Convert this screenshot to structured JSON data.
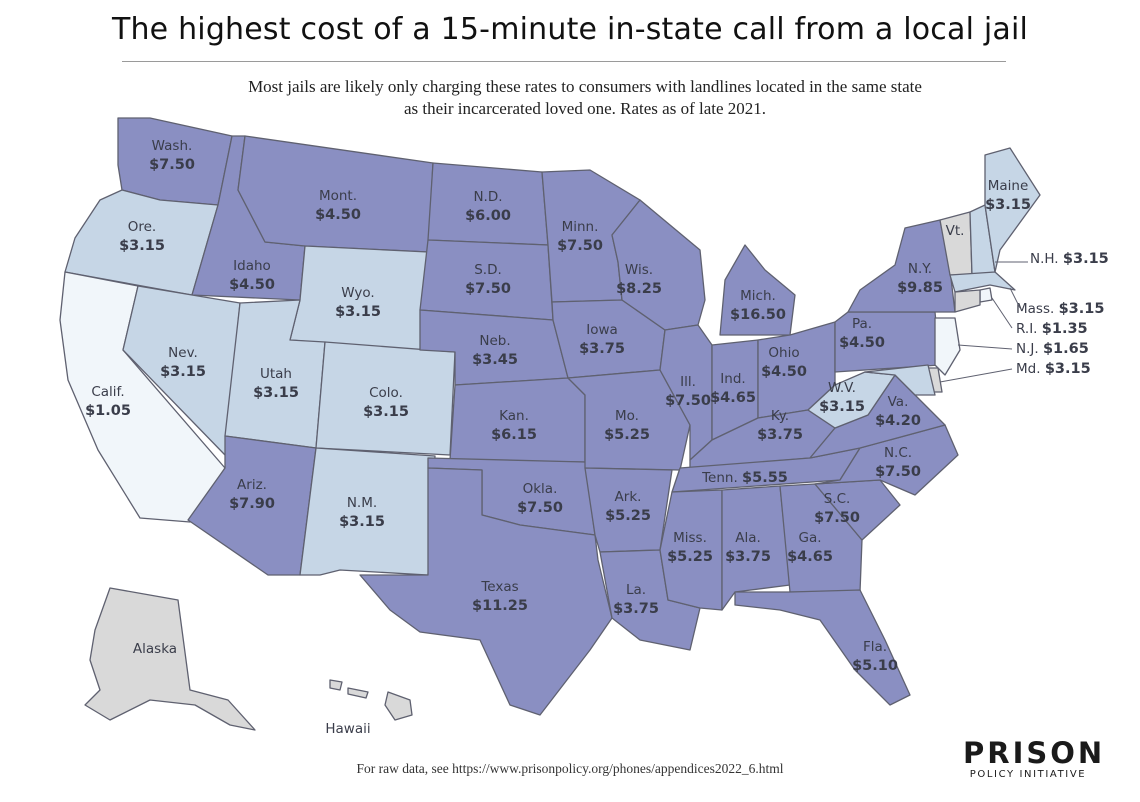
{
  "title": "The highest cost of a 15-minute in-state call from a local jail",
  "subtitle_line1": "Most jails are likely only charging these rates to consumers with landlines located in the same state",
  "subtitle_line2": "as their incarcerated loved one. Rates as of late 2021.",
  "footer": "For raw data, see https://www.prisonpolicy.org/phones/appendices2022_6.html",
  "logo": {
    "main": "PRISON",
    "sub": "POLICY INITIATIVE"
  },
  "colors": {
    "high": "#8a8fc2",
    "low": "#c6d6e6",
    "lowest": "#f1f6fa",
    "nodata": "#d9d9d9",
    "border": "#5f6170"
  },
  "states": [
    {
      "id": "wa",
      "name": "Wash.",
      "rate": "$7.50",
      "tier": "high"
    },
    {
      "id": "or",
      "name": "Ore.",
      "rate": "$3.15",
      "tier": "low"
    },
    {
      "id": "ca",
      "name": "Calif.",
      "rate": "$1.05",
      "tier": "lowest"
    },
    {
      "id": "id",
      "name": "Idaho",
      "rate": "$4.50",
      "tier": "high"
    },
    {
      "id": "nv",
      "name": "Nev.",
      "rate": "$3.15",
      "tier": "low"
    },
    {
      "id": "mt",
      "name": "Mont.",
      "rate": "$4.50",
      "tier": "high"
    },
    {
      "id": "wy",
      "name": "Wyo.",
      "rate": "$3.15",
      "tier": "low"
    },
    {
      "id": "ut",
      "name": "Utah",
      "rate": "$3.15",
      "tier": "low"
    },
    {
      "id": "co",
      "name": "Colo.",
      "rate": "$3.15",
      "tier": "low"
    },
    {
      "id": "az",
      "name": "Ariz.",
      "rate": "$7.90",
      "tier": "high"
    },
    {
      "id": "nm",
      "name": "N.M.",
      "rate": "$3.15",
      "tier": "low"
    },
    {
      "id": "nd",
      "name": "N.D.",
      "rate": "$6.00",
      "tier": "high"
    },
    {
      "id": "sd",
      "name": "S.D.",
      "rate": "$7.50",
      "tier": "high"
    },
    {
      "id": "ne",
      "name": "Neb.",
      "rate": "$3.45",
      "tier": "high"
    },
    {
      "id": "ks",
      "name": "Kan.",
      "rate": "$6.15",
      "tier": "high"
    },
    {
      "id": "ok",
      "name": "Okla.",
      "rate": "$7.50",
      "tier": "high"
    },
    {
      "id": "tx",
      "name": "Texas",
      "rate": "$11.25",
      "tier": "high"
    },
    {
      "id": "mn",
      "name": "Minn.",
      "rate": "$7.50",
      "tier": "high"
    },
    {
      "id": "ia",
      "name": "Iowa",
      "rate": "$3.75",
      "tier": "high"
    },
    {
      "id": "mo",
      "name": "Mo.",
      "rate": "$5.25",
      "tier": "high"
    },
    {
      "id": "ar",
      "name": "Ark.",
      "rate": "$5.25",
      "tier": "high"
    },
    {
      "id": "la",
      "name": "La.",
      "rate": "$3.75",
      "tier": "high"
    },
    {
      "id": "wi",
      "name": "Wis.",
      "rate": "$8.25",
      "tier": "high"
    },
    {
      "id": "il",
      "name": "Ill.",
      "rate": "$7.50",
      "tier": "high"
    },
    {
      "id": "mi",
      "name": "Mich.",
      "rate": "$16.50",
      "tier": "high"
    },
    {
      "id": "in",
      "name": "Ind.",
      "rate": "$4.65",
      "tier": "high"
    },
    {
      "id": "oh",
      "name": "Ohio",
      "rate": "$4.50",
      "tier": "high"
    },
    {
      "id": "ky",
      "name": "Ky.",
      "rate": "$3.75",
      "tier": "high"
    },
    {
      "id": "tn",
      "name": "Tenn.",
      "rate": "$5.55",
      "tier": "high"
    },
    {
      "id": "ms",
      "name": "Miss.",
      "rate": "$5.25",
      "tier": "high"
    },
    {
      "id": "al",
      "name": "Ala.",
      "rate": "$3.75",
      "tier": "high"
    },
    {
      "id": "ga",
      "name": "Ga.",
      "rate": "$4.65",
      "tier": "high"
    },
    {
      "id": "fl",
      "name": "Fla.",
      "rate": "$5.10",
      "tier": "high"
    },
    {
      "id": "sc",
      "name": "S.C.",
      "rate": "$7.50",
      "tier": "high"
    },
    {
      "id": "nc",
      "name": "N.C.",
      "rate": "$7.50",
      "tier": "high"
    },
    {
      "id": "va",
      "name": "Va.",
      "rate": "$4.20",
      "tier": "high"
    },
    {
      "id": "wv",
      "name": "W.V.",
      "rate": "$3.15",
      "tier": "low"
    },
    {
      "id": "pa",
      "name": "Pa.",
      "rate": "$4.50",
      "tier": "high"
    },
    {
      "id": "ny",
      "name": "N.Y.",
      "rate": "$9.85",
      "tier": "high"
    },
    {
      "id": "vt",
      "name": "Vt.",
      "rate": "",
      "tier": "nodata"
    },
    {
      "id": "nh",
      "name": "N.H.",
      "rate": "$3.15",
      "tier": "low"
    },
    {
      "id": "me",
      "name": "Maine",
      "rate": "$3.15",
      "tier": "low"
    },
    {
      "id": "ma",
      "name": "Mass.",
      "rate": "$3.15",
      "tier": "low"
    },
    {
      "id": "ri",
      "name": "R.I.",
      "rate": "$1.35",
      "tier": "lowest"
    },
    {
      "id": "ct",
      "name": "",
      "rate": "",
      "tier": "nodata"
    },
    {
      "id": "nj",
      "name": "N.J.",
      "rate": "$1.65",
      "tier": "lowest"
    },
    {
      "id": "de",
      "name": "",
      "rate": "",
      "tier": "nodata"
    },
    {
      "id": "md",
      "name": "Md.",
      "rate": "$3.15",
      "tier": "low"
    },
    {
      "id": "ak",
      "name": "Alaska",
      "rate": "",
      "tier": "nodata"
    },
    {
      "id": "hi",
      "name": "Hawaii",
      "rate": "",
      "tier": "nodata"
    }
  ]
}
